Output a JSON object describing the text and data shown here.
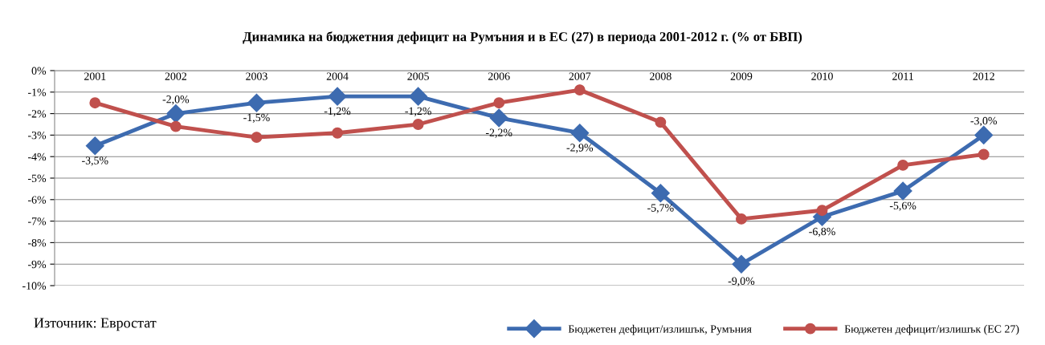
{
  "chart_data": {
    "type": "line",
    "title": "Динамика на бюджетния дефицит на Румъния и в ЕС (27) в периода 2001-2012 г. (% от БВП)",
    "categories": [
      "2001",
      "2002",
      "2003",
      "2004",
      "2005",
      "2006",
      "2007",
      "2008",
      "2009",
      "2010",
      "2011",
      "2012"
    ],
    "series": [
      {
        "name": "Бюджетен дефицит/излишък, Румъния",
        "color": "#3d6bb0",
        "marker": "diamond",
        "values": [
          -3.5,
          -2.0,
          -1.5,
          -1.2,
          -1.2,
          -2.2,
          -2.9,
          -5.7,
          -9.0,
          -6.8,
          -5.6,
          -3.0
        ],
        "value_labels": [
          "-3,5%",
          "-2,0%",
          "-1,5%",
          "-1,2%",
          "-1,2%",
          "-2,2%",
          "-2,9%",
          "-5,7%",
          "-9,0%",
          "-6,8%",
          "-5,6%",
          "-3,0%"
        ]
      },
      {
        "name": "Бюджетен дефицит/излишък (ЕС 27)",
        "color": "#c0504d",
        "marker": "circle",
        "values": [
          -1.5,
          -2.6,
          -3.1,
          -2.9,
          -2.5,
          -1.5,
          -0.9,
          -2.4,
          -6.9,
          -6.5,
          -4.4,
          -3.9
        ]
      }
    ],
    "ylim": [
      -10,
      0
    ],
    "yticks": [
      {
        "value": 0,
        "label": "0%"
      },
      {
        "value": -1,
        "label": "-1%"
      },
      {
        "value": -2,
        "label": "-2%"
      },
      {
        "value": -3,
        "label": "-3%"
      },
      {
        "value": -4,
        "label": "-4%"
      },
      {
        "value": -5,
        "label": "-5%"
      },
      {
        "value": -6,
        "label": "-6%"
      },
      {
        "value": -7,
        "label": "-7%"
      },
      {
        "value": -8,
        "label": "-8%"
      },
      {
        "value": -9,
        "label": "-9%"
      },
      {
        "value": -10,
        "label": "-10%"
      }
    ],
    "grid": "y",
    "legend": "bottom right",
    "line_style": "solid",
    "annotations": [
      "Източник: Евростат"
    ]
  }
}
